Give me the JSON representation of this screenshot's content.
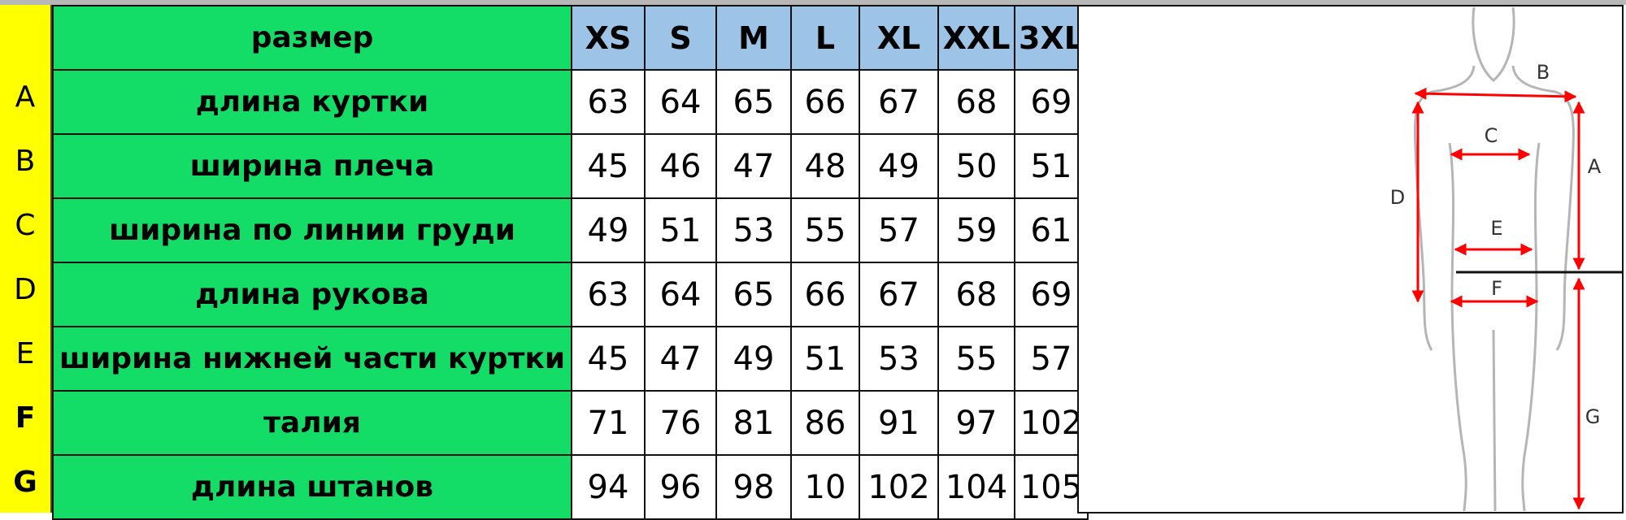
{
  "row_letters": [
    "A",
    "B",
    "C",
    "D",
    "E",
    "F",
    "G"
  ],
  "table": {
    "header_label": "размер",
    "sizes": [
      "XS",
      "S",
      "M",
      "L",
      "XL",
      "XXL",
      "3XL"
    ],
    "rows": [
      {
        "label": "длина куртки",
        "values": [
          "63",
          "64",
          "65",
          "66",
          "67",
          "68",
          "69"
        ]
      },
      {
        "label": "ширина плеча",
        "values": [
          "45",
          "46",
          "47",
          "48",
          "49",
          "50",
          "51"
        ]
      },
      {
        "label": "ширина по линии груди",
        "values": [
          "49",
          "51",
          "53",
          "55",
          "57",
          "59",
          "61"
        ]
      },
      {
        "label": "длина рукова",
        "values": [
          "63",
          "64",
          "65",
          "66",
          "67",
          "68",
          "69"
        ]
      },
      {
        "label": "ширина нижней части куртки",
        "values": [
          "45",
          "47",
          "49",
          "51",
          "53",
          "55",
          "57"
        ]
      },
      {
        "label": "талия",
        "values": [
          "71",
          "76",
          "81",
          "86",
          "91",
          "97",
          "102"
        ]
      },
      {
        "label": "длина штанов",
        "values": [
          "94",
          "96",
          "98",
          "10",
          "102",
          "104",
          "105"
        ]
      }
    ]
  },
  "figure": {
    "labels": {
      "A": "A",
      "B": "B",
      "C": "C",
      "D": "D",
      "E": "E",
      "F": "F",
      "G": "G"
    },
    "arrow_color": "#ff0000"
  },
  "colors": {
    "label_bg": "#13dc67",
    "size_header_bg": "#9dc3e6",
    "letters_bg": "#ffff00"
  }
}
